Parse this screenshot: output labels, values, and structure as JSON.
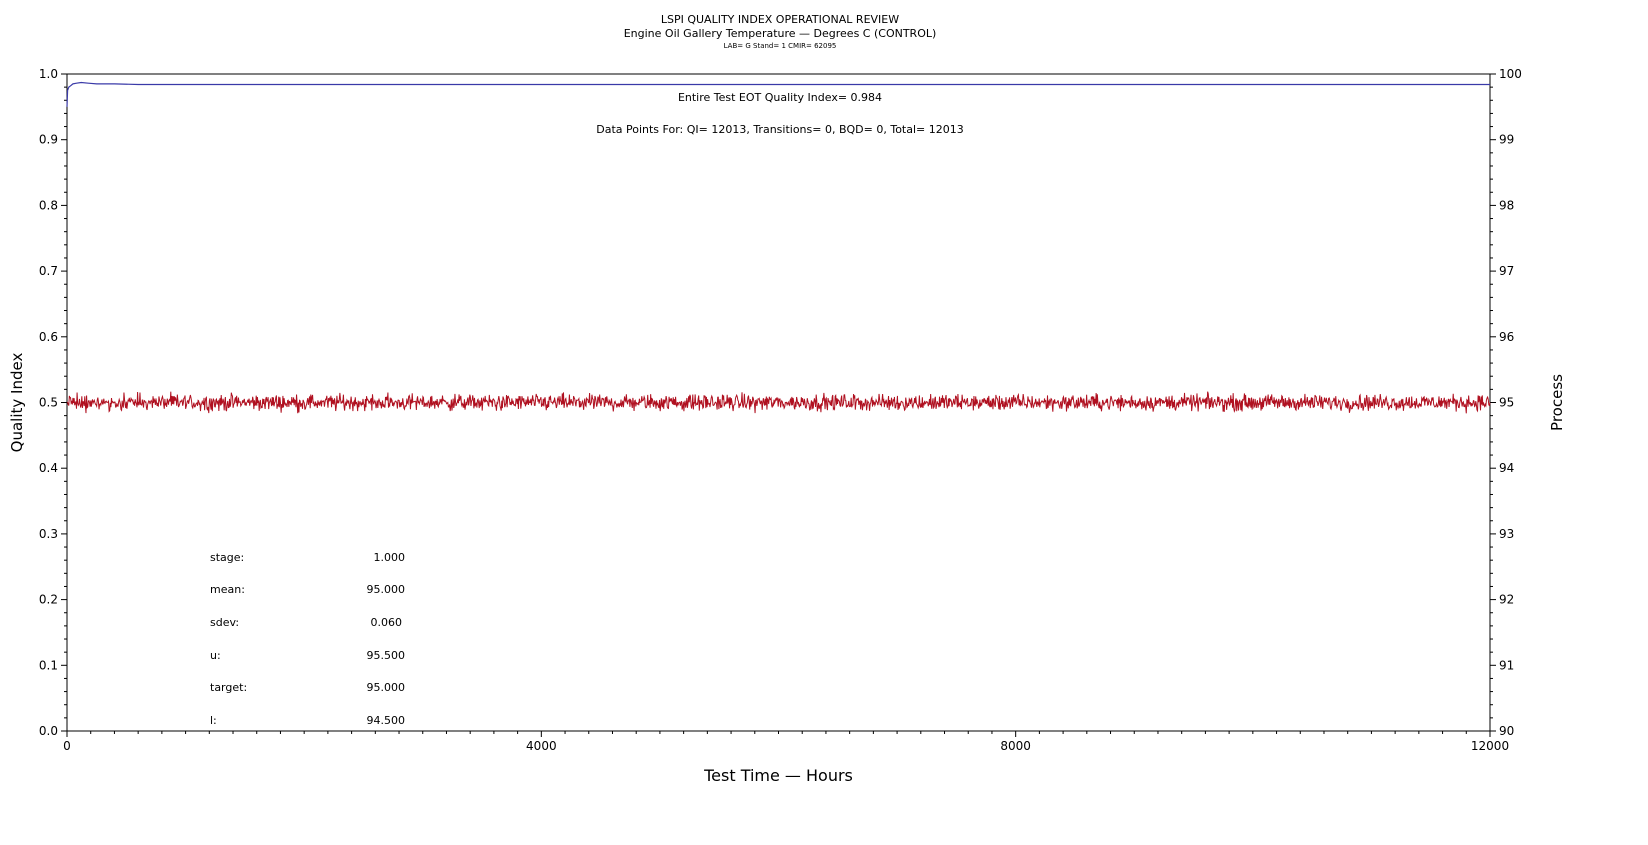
{
  "header": {
    "title": "LSPI QUALITY INDEX OPERATIONAL REVIEW",
    "subtitle": "Engine Oil Gallery Temperature — Degrees C (CONTROL)",
    "subsubtitle": "LAB= G Stand= 1 CMIR= 62095"
  },
  "annotations": {
    "eot_qi": "Entire Test EOT Quality Index=   0.984",
    "data_points": "Data Points For: QI= 12013, Transitions=      0, BQD=      0, Total= 12013"
  },
  "stats": [
    {
      "label": "stage:",
      "value": "1.000"
    },
    {
      "label": "mean:",
      "value": "95.000"
    },
    {
      "label": "sdev:",
      "value": "0.060"
    },
    {
      "label": "u:",
      "value": "95.500"
    },
    {
      "label": "target:",
      "value": "95.000"
    },
    {
      "label": "l:",
      "value": "94.500"
    }
  ],
  "chart_data": {
    "type": "line",
    "title": "LSPI QUALITY INDEX OPERATIONAL REVIEW",
    "xlabel": "Test Time — Hours",
    "ylabel": "Quality Index",
    "y2label": "Process",
    "xlim": [
      0,
      12000
    ],
    "ylim": [
      0.0,
      1.0
    ],
    "y2lim": [
      90,
      100
    ],
    "x_ticks": [
      "0",
      "4000",
      "8000",
      "12000"
    ],
    "y_ticks": [
      "0.0",
      "0.1",
      "0.2",
      "0.3",
      "0.4",
      "0.5",
      "0.6",
      "0.7",
      "0.8",
      "0.9",
      "1.0"
    ],
    "y2_ticks": [
      "90",
      "91",
      "92",
      "93",
      "94",
      "95",
      "96",
      "97",
      "98",
      "99",
      "100"
    ],
    "grid": false,
    "series": [
      {
        "axis": "left",
        "color": "#3a3aa8",
        "x": [
          0,
          5,
          15,
          30,
          50,
          80,
          120,
          180,
          250,
          400,
          600,
          650,
          12000
        ],
        "y": [
          0.95,
          0.975,
          0.98,
          0.982,
          0.985,
          0.986,
          0.987,
          0.986,
          0.985,
          0.985,
          0.984,
          0.984,
          0.984
        ]
      },
      {
        "axis": "right",
        "color": "#b01020",
        "x": [
          0,
          12000
        ],
        "y": [
          95.0,
          95.0
        ],
        "mean": 95.0,
        "sdev": 0.06,
        "n_points": 12013
      }
    ]
  }
}
